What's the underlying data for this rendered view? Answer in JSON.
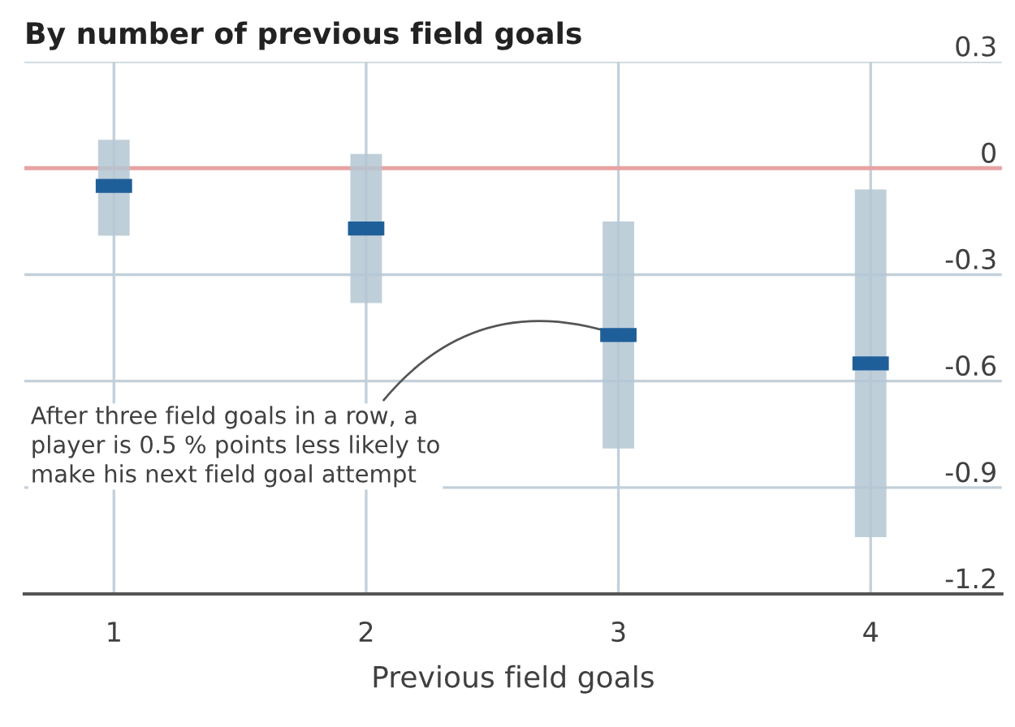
{
  "chart_data": {
    "type": "scatter",
    "title": "By number of previous field goals",
    "xlabel": "Previous field goals",
    "categories": [
      "1",
      "2",
      "3",
      "4"
    ],
    "values": [
      -0.05,
      -0.17,
      -0.47,
      -0.55
    ],
    "color": "#1f5f99",
    "errors": [
      [
        -0.19,
        0.08
      ],
      [
        -0.38,
        0.04
      ],
      [
        -0.79,
        -0.15
      ],
      [
        -1.04,
        -0.06
      ]
    ],
    "ylim": [
      -1.2,
      0.3
    ],
    "yticks": [
      0.3,
      0,
      -0.3,
      -0.6,
      -0.9,
      -1.2
    ],
    "grid": true,
    "ref_lines": [
      {
        "axis": "y",
        "value": 0,
        "color": "#e8a3a3"
      }
    ],
    "annotations": [
      {
        "text": "After three field goals in a row, a\nplayer is 0.5 % points less likely to\nmake his next field goal attempt",
        "x": "3",
        "y": -0.47
      }
    ]
  }
}
